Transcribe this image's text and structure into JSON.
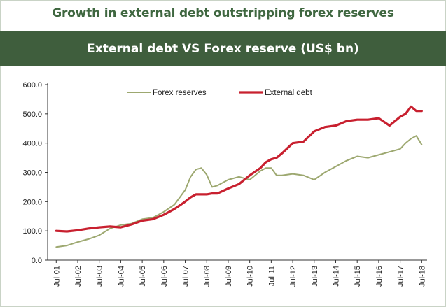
{
  "headline": "Growth in external debt outstripping forex reserves",
  "chart_data": {
    "type": "line",
    "title": "External debt VS Forex reserve (US$ bn)",
    "xlabel": "",
    "ylabel": "",
    "ylim": [
      0,
      600
    ],
    "yticks": [
      "0.0",
      "100.0",
      "200.0",
      "300.0",
      "400.0",
      "500.0",
      "600.0"
    ],
    "xticks": [
      "Jul-01",
      "Jul-02",
      "Jul-03",
      "Jul-04",
      "Jul-05",
      "Jul-06",
      "Jul-07",
      "Jul-08",
      "Jul-09",
      "Jul-10",
      "Jul-11",
      "Jul-12",
      "Jul-13",
      "Jul-14",
      "Jul-15",
      "Jul-16",
      "Jul-17",
      "Jul-18"
    ],
    "x": [
      2001.5,
      2002.0,
      2002.5,
      2003.0,
      2003.5,
      2004.0,
      2004.5,
      2005.0,
      2005.5,
      2006.0,
      2006.5,
      2007.0,
      2007.5,
      2007.75,
      2008.0,
      2008.25,
      2008.5,
      2008.75,
      2009.0,
      2009.5,
      2010.0,
      2010.5,
      2011.0,
      2011.25,
      2011.5,
      2011.75,
      2012.0,
      2012.5,
      2013.0,
      2013.5,
      2014.0,
      2014.5,
      2015.0,
      2015.5,
      2016.0,
      2016.5,
      2017.0,
      2017.5,
      2017.75,
      2018.0,
      2018.25,
      2018.5
    ],
    "series": [
      {
        "name": "Forex reserves",
        "color": "#9da870",
        "values": [
          45,
          50,
          62,
          72,
          85,
          108,
          120,
          125,
          140,
          145,
          165,
          190,
          240,
          285,
          310,
          315,
          292,
          250,
          255,
          275,
          285,
          275,
          305,
          315,
          315,
          290,
          290,
          295,
          290,
          275,
          300,
          320,
          340,
          355,
          350,
          360,
          370,
          380,
          400,
          415,
          425,
          395
        ]
      },
      {
        "name": "External debt",
        "color": "#c8202f",
        "values": [
          100,
          98,
          102,
          108,
          112,
          115,
          112,
          122,
          135,
          140,
          155,
          175,
          200,
          215,
          225,
          225,
          225,
          228,
          228,
          245,
          260,
          290,
          315,
          335,
          345,
          350,
          365,
          400,
          405,
          440,
          455,
          460,
          475,
          480,
          480,
          485,
          460,
          490,
          500,
          525,
          510,
          510
        ]
      }
    ],
    "legend": "top-center"
  }
}
